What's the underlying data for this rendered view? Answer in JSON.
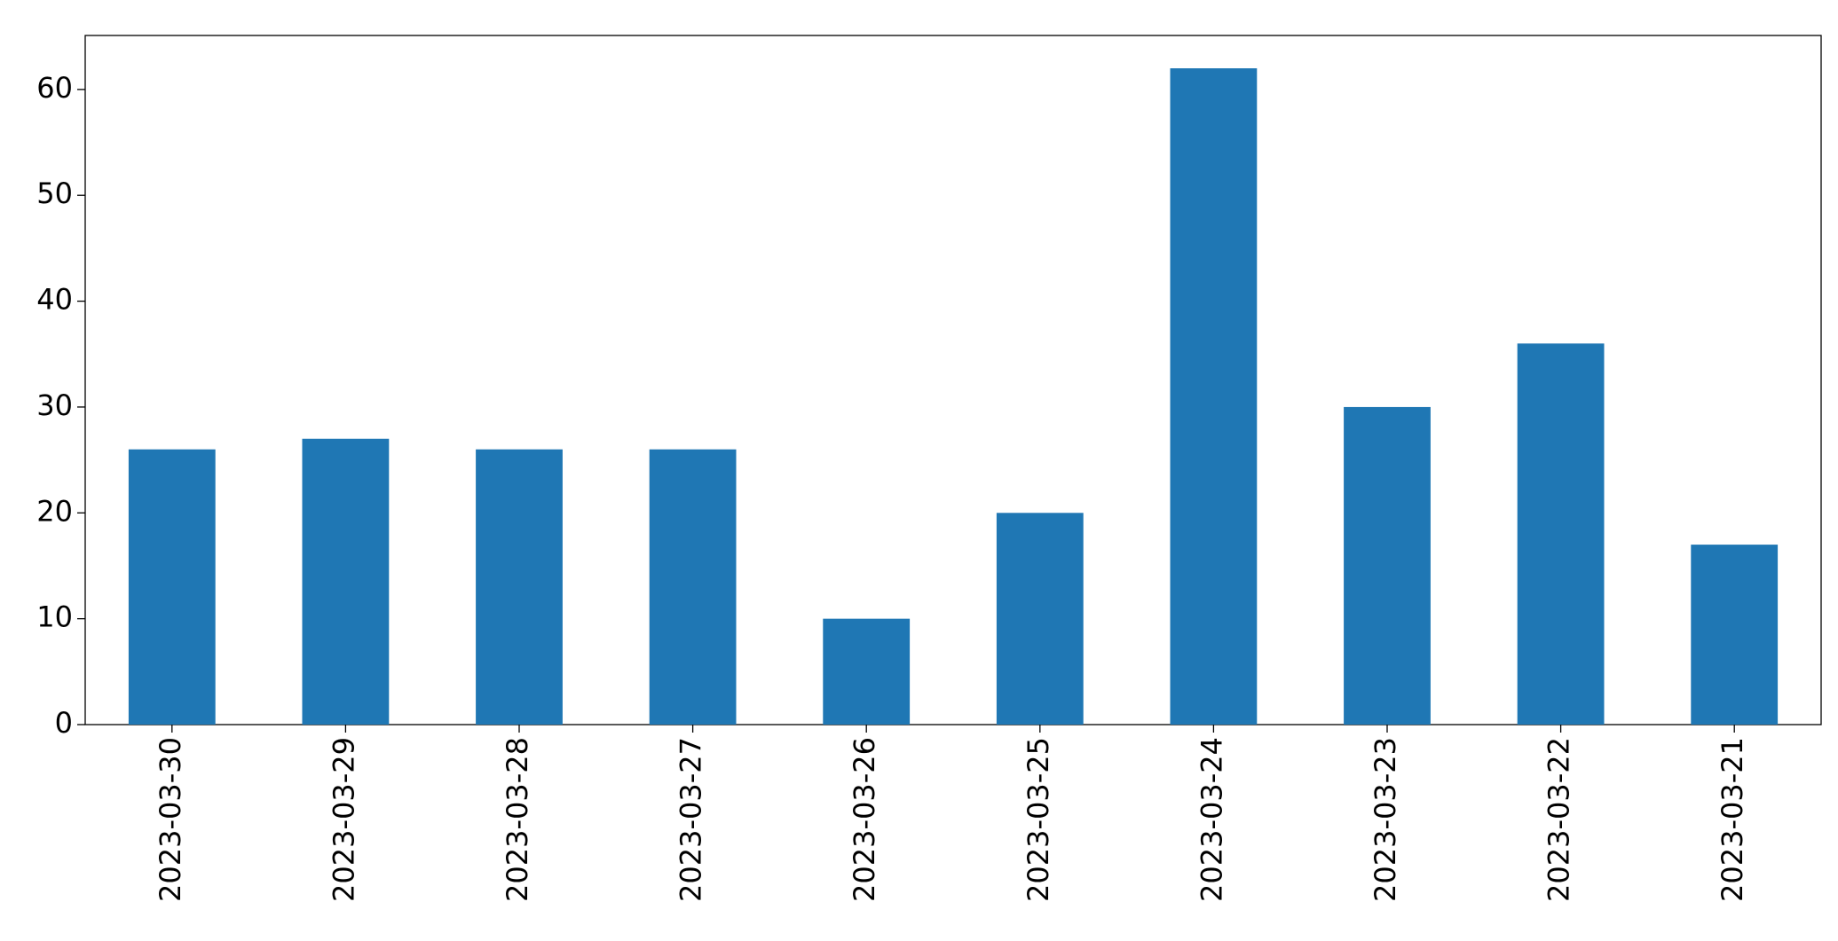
{
  "chart_data": {
    "type": "bar",
    "categories": [
      "2023-03-30",
      "2023-03-29",
      "2023-03-28",
      "2023-03-27",
      "2023-03-26",
      "2023-03-25",
      "2023-03-24",
      "2023-03-23",
      "2023-03-22",
      "2023-03-21"
    ],
    "values": [
      26,
      27,
      26,
      26,
      10,
      20,
      62,
      30,
      36,
      17
    ],
    "color": "#1f77b4",
    "ylim": [
      0,
      65.1
    ],
    "yticks": [
      0,
      10,
      20,
      30,
      40,
      50,
      60
    ],
    "grid": false
  }
}
